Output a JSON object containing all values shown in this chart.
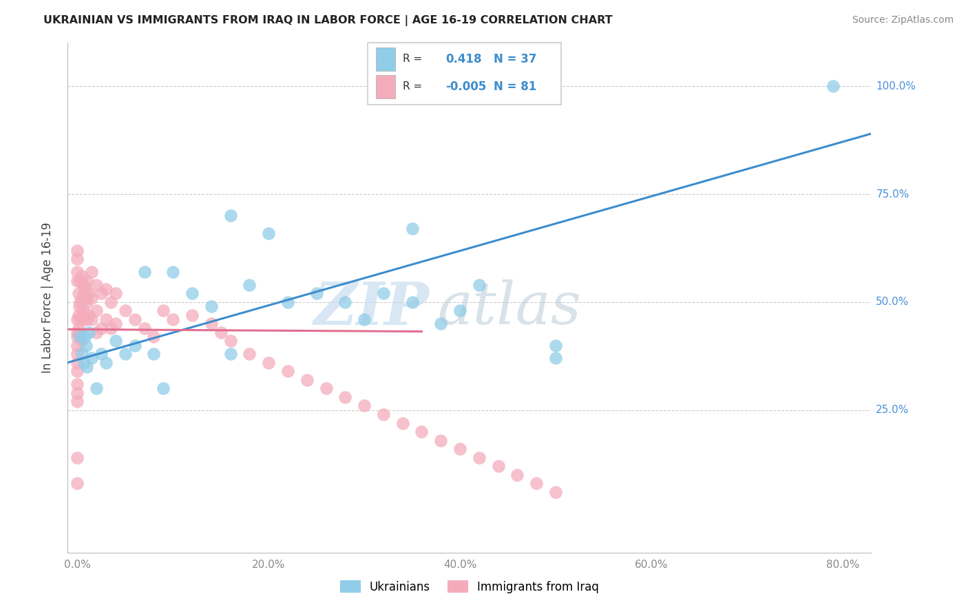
{
  "title": "UKRAINIAN VS IMMIGRANTS FROM IRAQ IN LABOR FORCE | AGE 16-19 CORRELATION CHART",
  "source": "Source: ZipAtlas.com",
  "ylabel": "In Labor Force | Age 16-19",
  "xlabel_ticks": [
    "0.0%",
    "20.0%",
    "40.0%",
    "60.0%",
    "80.0%"
  ],
  "xlabel_vals": [
    0.0,
    0.2,
    0.4,
    0.6,
    0.8
  ],
  "ylabel_ticks": [
    "25.0%",
    "50.0%",
    "75.0%",
    "100.0%"
  ],
  "ylabel_vals": [
    0.25,
    0.5,
    0.75,
    1.0
  ],
  "xlim": [
    -0.01,
    0.83
  ],
  "ylim": [
    -0.08,
    1.1
  ],
  "R_ukrainian": "0.418",
  "N_ukrainian": 37,
  "R_iraqi": "-0.005",
  "N_iraqi": 81,
  "ukrainian_color": "#90CDE8",
  "iraqi_color": "#F4ACBB",
  "trend_ukrainian_color": "#3C8DCD",
  "trend_iraqi_color": "#E07090",
  "watermark_zip": "ZIP",
  "watermark_atlas": "atlas",
  "background_color": "#FFFFFF",
  "grid_color": "#CCCCCC",
  "ytick_color": "#4A90D9",
  "xtick_color": "#888888",
  "trend_ukr_x0": -0.01,
  "trend_ukr_y0": 0.36,
  "trend_ukr_x1": 0.83,
  "trend_ukr_y1": 0.89,
  "trend_irq_x0": -0.01,
  "trend_irq_y0": 0.437,
  "trend_irq_x1": 0.36,
  "trend_irq_y1": 0.432,
  "ukr_x": [
    0.003,
    0.005,
    0.007,
    0.008,
    0.009,
    0.01,
    0.012,
    0.015,
    0.02,
    0.025,
    0.03,
    0.04,
    0.05,
    0.06,
    0.07,
    0.08,
    0.09,
    0.1,
    0.12,
    0.14,
    0.16,
    0.18,
    0.22,
    0.25,
    0.28,
    0.3,
    0.32,
    0.35,
    0.38,
    0.4,
    0.42,
    0.5,
    0.16,
    0.2,
    0.35,
    0.79,
    0.5
  ],
  "ukr_y": [
    0.42,
    0.38,
    0.36,
    0.42,
    0.4,
    0.35,
    0.43,
    0.37,
    0.3,
    0.38,
    0.36,
    0.41,
    0.38,
    0.4,
    0.57,
    0.38,
    0.3,
    0.57,
    0.52,
    0.49,
    0.38,
    0.54,
    0.5,
    0.52,
    0.5,
    0.46,
    0.52,
    0.5,
    0.45,
    0.48,
    0.54,
    0.4,
    0.7,
    0.66,
    0.67,
    1.0,
    0.37
  ],
  "irq_x": [
    0.0,
    0.0,
    0.0,
    0.0,
    0.0,
    0.0,
    0.0,
    0.0,
    0.0,
    0.0,
    0.001,
    0.001,
    0.001,
    0.002,
    0.002,
    0.003,
    0.003,
    0.003,
    0.004,
    0.005,
    0.005,
    0.005,
    0.006,
    0.006,
    0.007,
    0.007,
    0.008,
    0.008,
    0.009,
    0.01,
    0.01,
    0.01,
    0.012,
    0.012,
    0.015,
    0.015,
    0.015,
    0.02,
    0.02,
    0.02,
    0.025,
    0.025,
    0.03,
    0.03,
    0.035,
    0.035,
    0.04,
    0.04,
    0.05,
    0.06,
    0.07,
    0.08,
    0.09,
    0.1,
    0.12,
    0.14,
    0.15,
    0.16,
    0.18,
    0.2,
    0.22,
    0.24,
    0.26,
    0.28,
    0.3,
    0.32,
    0.34,
    0.36,
    0.38,
    0.4,
    0.42,
    0.44,
    0.46,
    0.48,
    0.5,
    0.0,
    0.0,
    0.0,
    0.0,
    0.0,
    0.0
  ],
  "irq_y": [
    0.46,
    0.43,
    0.42,
    0.4,
    0.38,
    0.36,
    0.34,
    0.31,
    0.29,
    0.27,
    0.52,
    0.47,
    0.44,
    0.49,
    0.43,
    0.55,
    0.5,
    0.46,
    0.41,
    0.56,
    0.51,
    0.47,
    0.54,
    0.48,
    0.52,
    0.46,
    0.53,
    0.47,
    0.51,
    0.55,
    0.5,
    0.46,
    0.52,
    0.47,
    0.57,
    0.51,
    0.46,
    0.54,
    0.48,
    0.43,
    0.52,
    0.44,
    0.53,
    0.46,
    0.5,
    0.44,
    0.52,
    0.45,
    0.48,
    0.46,
    0.44,
    0.42,
    0.48,
    0.46,
    0.47,
    0.45,
    0.43,
    0.41,
    0.38,
    0.36,
    0.34,
    0.32,
    0.3,
    0.28,
    0.26,
    0.24,
    0.22,
    0.2,
    0.18,
    0.16,
    0.14,
    0.12,
    0.1,
    0.08,
    0.06,
    0.62,
    0.6,
    0.57,
    0.55,
    0.14,
    0.08
  ]
}
